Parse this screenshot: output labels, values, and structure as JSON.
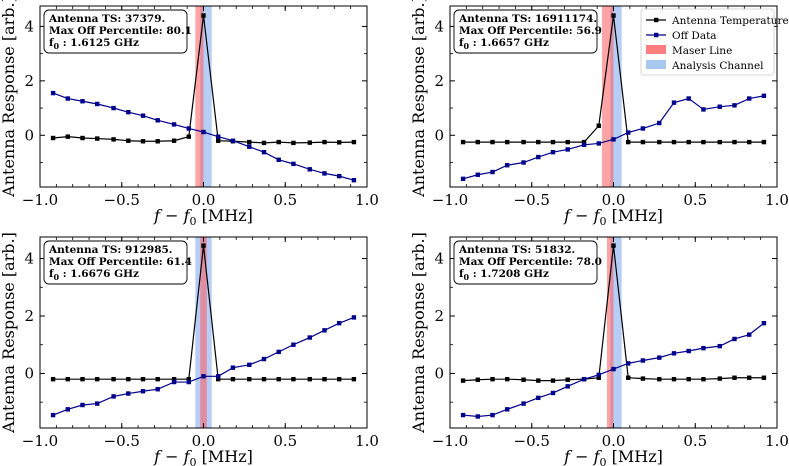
{
  "figure": {
    "x_label": "f − f",
    "x_label_sub": "0",
    "x_label_unit": " [MHz]",
    "y_label": "Antenna Response [arb.]"
  },
  "legend": {
    "entries": [
      {
        "label": "Antenna Temperature",
        "kind": "line",
        "color": "#000000"
      },
      {
        "label": "Off Data",
        "kind": "line",
        "color": "#00008b"
      },
      {
        "label": "Maser Line",
        "kind": "patch",
        "color": "#ff7f7f"
      },
      {
        "label": "Analysis Channel",
        "kind": "patch",
        "color": "#a8c8f0"
      }
    ]
  },
  "colors": {
    "antenna": "#000000",
    "off": "#00008b",
    "maser": "#ff5a5a",
    "analysis": "#7aa6ee"
  },
  "chart_data": [
    {
      "type": "line",
      "xlim": [
        -1.0,
        1.0
      ],
      "ylim": [
        -1.9,
        4.75
      ],
      "x_ticks": [
        -1.0,
        -0.5,
        0.0,
        0.5,
        1.0
      ],
      "x_tick_labels": [
        "−1.0",
        "−0.5",
        "0.0",
        "0.5",
        "1.0"
      ],
      "y_ticks": [
        0,
        2,
        4
      ],
      "y_tick_labels": [
        "0",
        "2",
        "4"
      ],
      "annotation": {
        "line1": "Antenna TS: 37379.",
        "line2": "Max Off Percentile: 80.1",
        "line3": "f",
        "line3_sub": "0",
        "line3_rest": " : 1.6125 GHz"
      },
      "maser_band": [
        -0.05,
        0.0
      ],
      "analysis_band": [
        -0.02,
        0.05
      ],
      "x": [
        -0.92,
        -0.83,
        -0.74,
        -0.65,
        -0.55,
        -0.46,
        -0.37,
        -0.28,
        -0.18,
        -0.09,
        0.0,
        0.09,
        0.18,
        0.28,
        0.37,
        0.46,
        0.55,
        0.65,
        0.74,
        0.83,
        0.92
      ],
      "series": [
        {
          "name": "Antenna Temperature",
          "values": [
            -0.1,
            -0.05,
            -0.1,
            -0.12,
            -0.15,
            -0.2,
            -0.22,
            -0.22,
            -0.2,
            -0.05,
            4.4,
            -0.2,
            -0.22,
            -0.25,
            -0.28,
            -0.25,
            -0.28,
            -0.27,
            -0.25,
            -0.26,
            -0.25
          ]
        },
        {
          "name": "Off Data",
          "values": [
            1.55,
            1.35,
            1.25,
            1.15,
            1.0,
            0.85,
            0.72,
            0.55,
            0.4,
            0.25,
            0.12,
            -0.05,
            -0.2,
            -0.42,
            -0.62,
            -0.9,
            -1.05,
            -1.25,
            -1.4,
            -1.5,
            -1.65
          ]
        }
      ]
    },
    {
      "type": "line",
      "xlim": [
        -1.0,
        1.0
      ],
      "ylim": [
        -1.9,
        4.75
      ],
      "x_ticks": [
        -1.0,
        -0.5,
        0.0,
        0.5,
        1.0
      ],
      "x_tick_labels": [
        "−1.0",
        "−0.5",
        "0.0",
        "0.5",
        "1.0"
      ],
      "y_ticks": [
        0,
        2,
        4
      ],
      "y_tick_labels": [
        "0",
        "2",
        "4"
      ],
      "annotation": {
        "line1": "Antenna TS: 16911174.",
        "line2": "Max Off Percentile: 56.9",
        "line3": "f",
        "line3_sub": "0",
        "line3_rest": " : 1.6657 GHz"
      },
      "maser_band": [
        -0.07,
        0.0
      ],
      "analysis_band": [
        -0.02,
        0.05
      ],
      "x": [
        -0.92,
        -0.83,
        -0.74,
        -0.65,
        -0.55,
        -0.46,
        -0.37,
        -0.28,
        -0.18,
        -0.09,
        0.0,
        0.09,
        0.18,
        0.28,
        0.37,
        0.46,
        0.55,
        0.65,
        0.74,
        0.83,
        0.92
      ],
      "series": [
        {
          "name": "Antenna Temperature",
          "values": [
            -0.25,
            -0.25,
            -0.25,
            -0.25,
            -0.25,
            -0.25,
            -0.25,
            -0.25,
            -0.25,
            0.35,
            4.4,
            -0.25,
            -0.25,
            -0.25,
            -0.25,
            -0.25,
            -0.25,
            -0.25,
            -0.25,
            -0.25,
            -0.25
          ]
        },
        {
          "name": "Off Data",
          "values": [
            -1.6,
            -1.45,
            -1.35,
            -1.1,
            -1.0,
            -0.8,
            -0.62,
            -0.52,
            -0.35,
            -0.3,
            -0.15,
            0.1,
            0.25,
            0.45,
            1.2,
            1.35,
            0.95,
            1.05,
            1.1,
            1.35,
            1.45
          ]
        }
      ]
    },
    {
      "type": "line",
      "xlim": [
        -1.0,
        1.0
      ],
      "ylim": [
        -1.9,
        4.75
      ],
      "x_ticks": [
        -1.0,
        -0.5,
        0.0,
        0.5,
        1.0
      ],
      "x_tick_labels": [
        "−1.0",
        "−0.5",
        "0.0",
        "0.5",
        "1.0"
      ],
      "y_ticks": [
        0,
        2,
        4
      ],
      "y_tick_labels": [
        "0",
        "2",
        "4"
      ],
      "annotation": {
        "line1": "Antenna TS: 912985.",
        "line2": "Max Off Percentile: 61.4",
        "line3": "f",
        "line3_sub": "0",
        "line3_rest": " : 1.6676 GHz"
      },
      "maser_band": [
        -0.02,
        0.02
      ],
      "analysis_band": [
        -0.05,
        0.05
      ],
      "x": [
        -0.92,
        -0.83,
        -0.74,
        -0.65,
        -0.55,
        -0.46,
        -0.37,
        -0.28,
        -0.18,
        -0.09,
        0.0,
        0.09,
        0.18,
        0.28,
        0.37,
        0.46,
        0.55,
        0.65,
        0.74,
        0.83,
        0.92
      ],
      "series": [
        {
          "name": "Antenna Temperature",
          "values": [
            -0.2,
            -0.2,
            -0.2,
            -0.2,
            -0.2,
            -0.2,
            -0.2,
            -0.2,
            -0.2,
            -0.2,
            4.45,
            -0.2,
            -0.2,
            -0.2,
            -0.2,
            -0.2,
            -0.2,
            -0.2,
            -0.2,
            -0.2,
            -0.2
          ]
        },
        {
          "name": "Off Data",
          "values": [
            -1.45,
            -1.25,
            -1.1,
            -1.05,
            -0.8,
            -0.7,
            -0.62,
            -0.55,
            -0.3,
            -0.3,
            -0.1,
            -0.1,
            0.2,
            0.3,
            0.5,
            0.75,
            1.0,
            1.25,
            1.5,
            1.75,
            1.95
          ]
        }
      ]
    },
    {
      "type": "line",
      "xlim": [
        -1.0,
        1.0
      ],
      "ylim": [
        -1.9,
        4.75
      ],
      "x_ticks": [
        -1.0,
        -0.5,
        0.0,
        0.5,
        1.0
      ],
      "x_tick_labels": [
        "−1.0",
        "−0.5",
        "0.0",
        "0.5",
        "1.0"
      ],
      "y_ticks": [
        0,
        2,
        4
      ],
      "y_tick_labels": [
        "0",
        "2",
        "4"
      ],
      "annotation": {
        "line1": "Antenna TS: 51832.",
        "line2": "Max Off Percentile: 78.0",
        "line3": "f",
        "line3_sub": "0",
        "line3_rest": " : 1.7208 GHz"
      },
      "maser_band": [
        -0.04,
        0.0
      ],
      "analysis_band": [
        -0.02,
        0.05
      ],
      "x": [
        -0.92,
        -0.83,
        -0.74,
        -0.65,
        -0.55,
        -0.46,
        -0.37,
        -0.28,
        -0.18,
        -0.09,
        0.0,
        0.09,
        0.18,
        0.28,
        0.37,
        0.46,
        0.55,
        0.65,
        0.74,
        0.83,
        0.92
      ],
      "series": [
        {
          "name": "Antenna Temperature",
          "values": [
            -0.25,
            -0.22,
            -0.2,
            -0.2,
            -0.22,
            -0.25,
            -0.25,
            -0.22,
            -0.2,
            -0.15,
            4.45,
            -0.15,
            -0.18,
            -0.2,
            -0.2,
            -0.2,
            -0.2,
            -0.18,
            -0.15,
            -0.15,
            -0.15
          ]
        },
        {
          "name": "Off Data",
          "values": [
            -1.45,
            -1.5,
            -1.45,
            -1.25,
            -1.05,
            -0.85,
            -0.68,
            -0.45,
            -0.2,
            -0.05,
            0.15,
            0.35,
            0.45,
            0.55,
            0.7,
            0.78,
            0.88,
            0.95,
            1.2,
            1.35,
            1.75
          ]
        }
      ]
    }
  ]
}
